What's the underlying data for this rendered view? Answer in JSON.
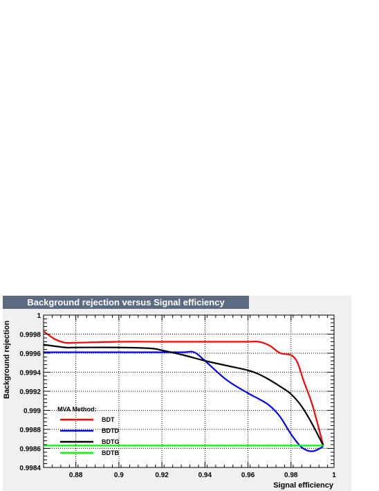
{
  "chart_data": {
    "type": "line",
    "title": "Background rejection versus Signal efficiency",
    "xlabel": "Signal efficiency",
    "ylabel": "Background rejection",
    "xlim": [
      0.865,
      1.0
    ],
    "ylim": [
      0.9984,
      1.0
    ],
    "x_ticks": [
      0.88,
      0.9,
      0.92,
      0.94,
      0.96,
      0.98,
      1.0
    ],
    "x_tick_labels": [
      "0.88",
      "0.9",
      "0.92",
      "0.94",
      "0.96",
      "0.98",
      "1"
    ],
    "y_ticks": [
      0.9984,
      0.9986,
      0.9988,
      0.999,
      0.9992,
      0.9994,
      0.9996,
      0.9998,
      1.0
    ],
    "y_tick_labels": [
      "0.9984",
      "0.9986",
      "0.9988",
      "0.999",
      "0.9992",
      "0.9994",
      "0.9996",
      "0.9998",
      "1"
    ],
    "grid": true,
    "legend": {
      "title": "MVA Method:",
      "placement": "bottom-left"
    },
    "series": [
      {
        "name": "BDT",
        "color": "#ff0000",
        "x": [
          0.865,
          0.87,
          0.875,
          0.88,
          0.9,
          0.92,
          0.94,
          0.955,
          0.96,
          0.965,
          0.97,
          0.975,
          0.98,
          0.983,
          0.986,
          0.99,
          0.995
        ],
        "y": [
          0.99983,
          0.99975,
          0.99971,
          0.99971,
          0.99972,
          0.99972,
          0.99972,
          0.99972,
          0.99972,
          0.99972,
          0.99968,
          0.9996,
          0.99958,
          0.9995,
          0.9993,
          0.99905,
          0.99863
        ]
      },
      {
        "name": "BDTD",
        "color": "#0000ff",
        "x": [
          0.865,
          0.88,
          0.9,
          0.92,
          0.93,
          0.935,
          0.94,
          0.95,
          0.96,
          0.965,
          0.97,
          0.975,
          0.98,
          0.985,
          0.99,
          0.995
        ],
        "y": [
          0.99961,
          0.99961,
          0.99961,
          0.99961,
          0.99961,
          0.99961,
          0.99952,
          0.99932,
          0.99918,
          0.99912,
          0.99905,
          0.99893,
          0.99875,
          0.99861,
          0.99857,
          0.99862
        ]
      },
      {
        "name": "BDTG",
        "color": "#000000",
        "x": [
          0.865,
          0.875,
          0.88,
          0.9,
          0.915,
          0.92,
          0.93,
          0.94,
          0.95,
          0.96,
          0.965,
          0.97,
          0.975,
          0.98,
          0.985,
          0.99,
          0.995
        ],
        "y": [
          0.99969,
          0.99966,
          0.99966,
          0.99966,
          0.99965,
          0.99963,
          0.99958,
          0.99952,
          0.99947,
          0.99942,
          0.99938,
          0.99932,
          0.99925,
          0.99917,
          0.99904,
          0.99885,
          0.99863
        ]
      },
      {
        "name": "BDTB",
        "color": "#00ff00",
        "x": [
          0.865,
          0.995
        ],
        "y": [
          0.99863,
          0.99863
        ]
      }
    ]
  }
}
